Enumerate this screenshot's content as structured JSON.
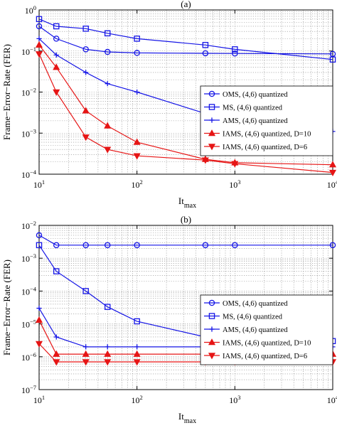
{
  "figure": {
    "colors": {
      "blue": "#1515e6",
      "red": "#e61515",
      "grid": "#8a8a8a",
      "axis": "#000000"
    }
  },
  "chart_data": [
    {
      "type": "line",
      "panel_label": "(a)",
      "xscale": "log",
      "yscale": "log",
      "xlim": [
        10,
        10000
      ],
      "ylim": [
        0.0001,
        1
      ],
      "xlabel": "It",
      "xlabel_subscript": "max",
      "ylabel": "Frame−Error−Rate (FER)",
      "x_ticks": [
        {
          "value": 10,
          "base": "10",
          "exp": "1"
        },
        {
          "value": 100,
          "base": "10",
          "exp": "2"
        },
        {
          "value": 1000,
          "base": "10",
          "exp": "3"
        },
        {
          "value": 10000,
          "base": "10",
          "exp": "4"
        }
      ],
      "y_ticks": [
        {
          "value": 0.0001,
          "base": "10",
          "exp": "−4"
        },
        {
          "value": 0.001,
          "base": "10",
          "exp": "−3"
        },
        {
          "value": 0.01,
          "base": "10",
          "exp": "−2"
        },
        {
          "value": 0.1,
          "base": "10",
          "exp": "−1"
        },
        {
          "value": 1,
          "base": "10",
          "exp": "0"
        }
      ],
      "grid": true,
      "legend_position": "right",
      "series": [
        {
          "name": "OMS, (4,6) quantized",
          "color": "#1515e6",
          "marker": "circle",
          "x": [
            10,
            15,
            30,
            50,
            100,
            500,
            1000,
            10000
          ],
          "y": [
            0.4,
            0.2,
            0.11,
            0.095,
            0.09,
            0.088,
            0.087,
            0.085
          ]
        },
        {
          "name": "MS, (4,6) quantized",
          "color": "#1515e6",
          "marker": "square",
          "x": [
            10,
            15,
            30,
            50,
            100,
            500,
            1000,
            10000
          ],
          "y": [
            0.6,
            0.4,
            0.35,
            0.27,
            0.2,
            0.14,
            0.11,
            0.062
          ]
        },
        {
          "name": "AMS, (4,6) quantized",
          "color": "#1515e6",
          "marker": "plus",
          "x": [
            10,
            15,
            30,
            50,
            100,
            500,
            1000,
            10000
          ],
          "y": [
            0.2,
            0.08,
            0.03,
            0.016,
            0.01,
            0.003,
            0.002,
            0.0011
          ]
        },
        {
          "name": "IAMS, (4,6) quantized, D=10",
          "color": "#e61515",
          "marker": "triangle-up",
          "x": [
            10,
            15,
            30,
            50,
            100,
            500,
            1000,
            10000
          ],
          "y": [
            0.14,
            0.04,
            0.0035,
            0.0015,
            0.0006,
            0.00023,
            0.00019,
            0.00017
          ]
        },
        {
          "name": "IAMS, (4,6) quantized, D=6",
          "color": "#e61515",
          "marker": "triangle-down",
          "x": [
            10,
            15,
            30,
            50,
            100,
            500,
            1000,
            10000
          ],
          "y": [
            0.085,
            0.01,
            0.0008,
            0.0004,
            0.00028,
            0.00022,
            0.00018,
            0.00011
          ]
        }
      ]
    },
    {
      "type": "line",
      "panel_label": "(b)",
      "xscale": "log",
      "yscale": "log",
      "xlim": [
        10,
        10000
      ],
      "ylim": [
        1e-07,
        0.01
      ],
      "xlabel": "It",
      "xlabel_subscript": "max",
      "ylabel": "Frame−Error−Rate (FER)",
      "x_ticks": [
        {
          "value": 10,
          "base": "10",
          "exp": "1"
        },
        {
          "value": 100,
          "base": "10",
          "exp": "2"
        },
        {
          "value": 1000,
          "base": "10",
          "exp": "3"
        },
        {
          "value": 10000,
          "base": "10",
          "exp": "4"
        }
      ],
      "y_ticks": [
        {
          "value": 1e-07,
          "base": "10",
          "exp": "−7"
        },
        {
          "value": 1e-06,
          "base": "10",
          "exp": "−6"
        },
        {
          "value": 1e-05,
          "base": "10",
          "exp": "−5"
        },
        {
          "value": 0.0001,
          "base": "10",
          "exp": "−4"
        },
        {
          "value": 0.001,
          "base": "10",
          "exp": "−3"
        },
        {
          "value": 0.01,
          "base": "10",
          "exp": "−2"
        }
      ],
      "grid": true,
      "legend_position": "right",
      "series": [
        {
          "name": "OMS, (4,6) quantized",
          "color": "#1515e6",
          "marker": "circle",
          "x": [
            10,
            15,
            30,
            50,
            100,
            500,
            1000,
            10000
          ],
          "y": [
            0.005,
            0.0025,
            0.0025,
            0.0025,
            0.0025,
            0.0025,
            0.0025,
            0.0025
          ]
        },
        {
          "name": "MS, (4,6) quantized",
          "color": "#1515e6",
          "marker": "square",
          "x": [
            10,
            15,
            30,
            50,
            100,
            500,
            1000,
            10000
          ],
          "y": [
            0.0025,
            0.0004,
            0.0001,
            3.3e-05,
            1.2e-05,
            4e-06,
            3.3e-06,
            3e-06
          ]
        },
        {
          "name": "AMS, (4,6) quantized",
          "color": "#1515e6",
          "marker": "plus",
          "x": [
            10,
            15,
            30,
            50,
            100,
            500,
            1000,
            10000
          ],
          "y": [
            3e-05,
            4e-06,
            2e-06,
            2e-06,
            2e-06,
            2e-06,
            2e-06,
            2e-06
          ]
        },
        {
          "name": "IAMS, (4,6) quantized, D=10",
          "color": "#e61515",
          "marker": "triangle-up",
          "x": [
            10,
            15,
            30,
            50,
            100,
            500,
            1000,
            10000
          ],
          "y": [
            1.3e-05,
            1.2e-06,
            1.2e-06,
            1.2e-06,
            1.2e-06,
            1.2e-06,
            1.2e-06,
            1.2e-06
          ]
        },
        {
          "name": "IAMS, (4,6) quantized, D=6",
          "color": "#e61515",
          "marker": "triangle-down",
          "x": [
            10,
            15,
            30,
            50,
            100,
            500,
            1000,
            10000
          ],
          "y": [
            2.5e-06,
            7e-07,
            7e-07,
            7e-07,
            7e-07,
            7e-07,
            7e-07,
            7e-07
          ]
        }
      ]
    }
  ]
}
